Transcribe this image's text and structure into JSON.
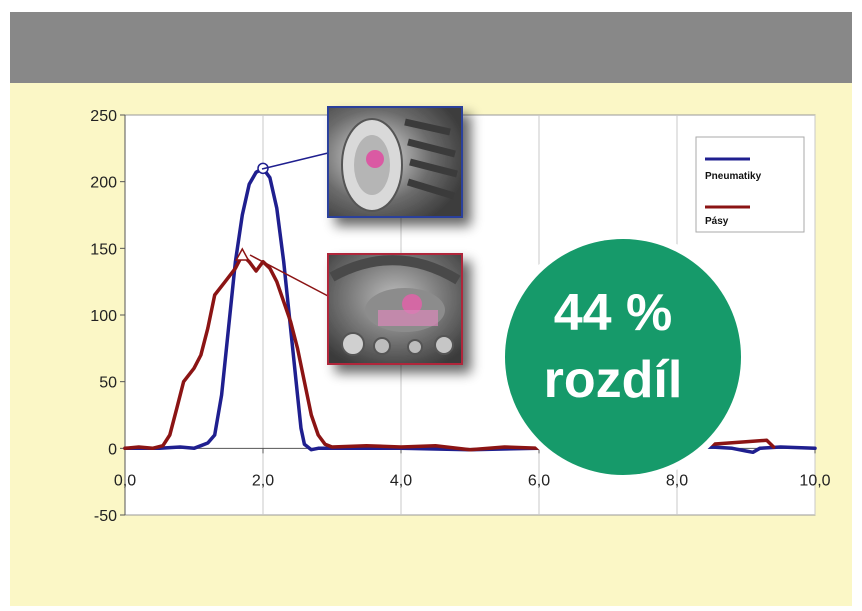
{
  "chart_data": {
    "type": "line",
    "title": "",
    "xlabel": "",
    "ylabel": "",
    "xlim": [
      0,
      10
    ],
    "ylim": [
      -50,
      250
    ],
    "x_ticks": [
      "0,0",
      "2,0",
      "4,0",
      "6,0",
      "8,0",
      "10,0"
    ],
    "y_ticks": [
      "250",
      "200",
      "150",
      "100",
      "50",
      "0",
      "-50"
    ],
    "grid": "vertical",
    "legend": "top-right",
    "series": [
      {
        "name": "Pneumatiky",
        "color": "#1f1f8f",
        "points": [
          [
            0,
            0
          ],
          [
            0.5,
            0
          ],
          [
            0.8,
            1
          ],
          [
            1.0,
            0
          ],
          [
            1.1,
            2
          ],
          [
            1.2,
            4
          ],
          [
            1.3,
            10
          ],
          [
            1.4,
            40
          ],
          [
            1.5,
            90
          ],
          [
            1.6,
            140
          ],
          [
            1.7,
            175
          ],
          [
            1.8,
            198
          ],
          [
            1.9,
            207
          ],
          [
            2.0,
            210
          ],
          [
            2.1,
            203
          ],
          [
            2.2,
            180
          ],
          [
            2.3,
            140
          ],
          [
            2.4,
            90
          ],
          [
            2.5,
            40
          ],
          [
            2.55,
            15
          ],
          [
            2.6,
            3
          ],
          [
            2.7,
            -1
          ],
          [
            2.8,
            0
          ],
          [
            3.0,
            0
          ],
          [
            4.0,
            0
          ],
          [
            5.0,
            -1
          ],
          [
            6.0,
            0
          ],
          [
            7.0,
            0
          ],
          [
            8.0,
            0
          ],
          [
            8.5,
            1
          ],
          [
            8.8,
            0
          ],
          [
            9.0,
            -2
          ],
          [
            9.1,
            -3
          ],
          [
            9.2,
            0
          ],
          [
            9.5,
            1
          ],
          [
            10.0,
            0
          ]
        ]
      },
      {
        "name": "Pásy",
        "color": "#8b1414",
        "points": [
          [
            0,
            0
          ],
          [
            0.2,
            1
          ],
          [
            0.4,
            0
          ],
          [
            0.55,
            2
          ],
          [
            0.65,
            10
          ],
          [
            0.75,
            30
          ],
          [
            0.85,
            50
          ],
          [
            1.0,
            60
          ],
          [
            1.1,
            70
          ],
          [
            1.2,
            90
          ],
          [
            1.3,
            115
          ],
          [
            1.45,
            125
          ],
          [
            1.6,
            135
          ],
          [
            1.7,
            145
          ],
          [
            1.8,
            140
          ],
          [
            1.9,
            133
          ],
          [
            2.0,
            140
          ],
          [
            2.1,
            135
          ],
          [
            2.2,
            125
          ],
          [
            2.3,
            110
          ],
          [
            2.4,
            95
          ],
          [
            2.5,
            75
          ],
          [
            2.6,
            50
          ],
          [
            2.7,
            25
          ],
          [
            2.8,
            10
          ],
          [
            2.9,
            3
          ],
          [
            3.0,
            1
          ],
          [
            3.5,
            2
          ],
          [
            4.0,
            1
          ],
          [
            4.5,
            2
          ],
          [
            5.0,
            -1
          ],
          [
            5.5,
            1
          ],
          [
            6.0,
            0
          ],
          [
            6.5,
            0
          ],
          [
            7.0,
            1
          ],
          [
            7.5,
            2
          ],
          [
            8.0,
            3
          ],
          [
            8.5,
            3
          ],
          [
            9.0,
            5
          ],
          [
            9.3,
            6
          ],
          [
            9.4,
            1
          ]
        ]
      }
    ],
    "annotations": [
      {
        "series": "Pneumatiky",
        "x": 2.0,
        "y": 210,
        "marker": "circle"
      },
      {
        "series": "Pásy",
        "x": 1.7,
        "y": 145,
        "marker": "triangle"
      }
    ],
    "callout": {
      "line1": "44 %",
      "line2": "rozdíl",
      "color": "#169a6a"
    }
  }
}
